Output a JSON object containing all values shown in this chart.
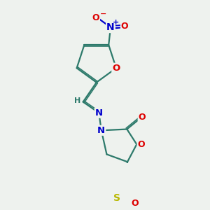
{
  "bg_color": "#eef2ee",
  "bond_color": "#2d7a6b",
  "bond_width": 1.6,
  "atom_colors": {
    "N": "#0000cc",
    "O": "#dd0000",
    "S": "#b8b800",
    "C": "#2d7a6b",
    "H": "#2d7a6b"
  },
  "font_size": 9,
  "font_size_small": 7
}
